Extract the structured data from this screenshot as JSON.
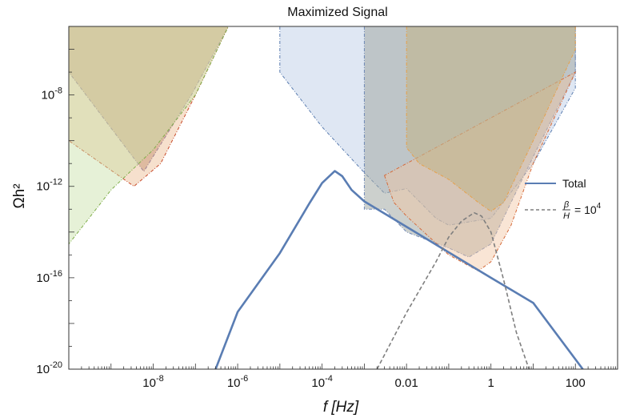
{
  "chart_data": {
    "type": "line",
    "title": "Maximized Signal",
    "xlabel": "f [Hz]",
    "ylabel": "Ωh²",
    "x_scale": "log",
    "y_scale": "log",
    "xlim": [
      1e-10,
      1000
    ],
    "ylim": [
      1e-20,
      1e-05
    ],
    "x_ticks": [
      {
        "value": 1e-08,
        "label": "10",
        "exp": "-8"
      },
      {
        "value": 1e-06,
        "label": "10",
        "exp": "-6"
      },
      {
        "value": 0.0001,
        "label": "10",
        "exp": "-4"
      },
      {
        "value": 0.01,
        "label": "0.01",
        "exp": ""
      },
      {
        "value": 1,
        "label": "1",
        "exp": ""
      },
      {
        "value": 100,
        "label": "100",
        "exp": ""
      }
    ],
    "y_ticks": [
      {
        "value": 1e-08,
        "label": "10",
        "exp": "-8"
      },
      {
        "value": 1e-12,
        "label": "10",
        "exp": "-12"
      },
      {
        "value": 1e-16,
        "label": "10",
        "exp": "-16"
      },
      {
        "value": 1e-20,
        "label": "10",
        "exp": "-20"
      }
    ],
    "legend": {
      "position": "right",
      "entries": [
        {
          "label": "Total",
          "color": "#5a7db3",
          "style": "solid"
        },
        {
          "label": "β/H = 10⁴",
          "num": "β",
          "den": "H",
          "rhs": "= 10",
          "rhs_exp": "4",
          "color": "#7f7f7f",
          "style": "dashed"
        }
      ]
    },
    "series": [
      {
        "name": "Total",
        "color": "#5a7db3",
        "style": "solid",
        "x": [
          3e-07,
          1e-06,
          1e-05,
          5e-05,
          0.0001,
          0.0002,
          0.0003,
          0.0005,
          0.001,
          0.003,
          0.01,
          0.1,
          1,
          10,
          150
        ],
        "y": [
          1e-20,
          3.2e-18,
          1.2e-15,
          1.8e-13,
          1.4e-12,
          4.7e-12,
          2.8e-12,
          7e-13,
          2.2e-13,
          6.5e-14,
          1.7e-14,
          1.3e-15,
          1e-16,
          8e-18,
          1e-20
        ]
      },
      {
        "name": "β/H = 10⁴",
        "color": "#7f7f7f",
        "style": "dashed",
        "x": [
          0.002,
          0.01,
          0.05,
          0.1,
          0.2,
          0.4,
          0.6,
          1,
          2,
          4,
          8
        ],
        "y": [
          1e-20,
          3e-18,
          5e-16,
          6e-15,
          3e-14,
          7e-14,
          5e-14,
          1e-14,
          8e-17,
          4e-19,
          1e-20
        ]
      }
    ],
    "regions": [
      {
        "color": "#8b4a2b",
        "fill_opacity": 0.32,
        "edge": "#7b6fa8",
        "x": [
          1e-10,
          1e-10,
          6e-09,
          8e-08,
          6e-07,
          1e-10
        ],
        "y": [
          1e-05,
          1e-07,
          4.5e-12,
          1e-08,
          1e-05,
          1e-05
        ]
      },
      {
        "color": "#e6a571",
        "fill_opacity": 0.35,
        "edge": "#c84a2a",
        "x": [
          1e-10,
          1e-10,
          3.5e-09,
          1.5e-08,
          1e-07,
          6e-07,
          1e-10
        ],
        "y": [
          1e-05,
          1e-10,
          1e-12,
          1e-11,
          1e-08,
          1e-05,
          1e-05
        ]
      },
      {
        "color": "#c7dfa6",
        "fill_opacity": 0.45,
        "edge": "#7fad4a",
        "x": [
          1e-10,
          1e-10,
          1e-09,
          1e-08,
          1e-07,
          6e-07,
          1e-10
        ],
        "y": [
          1e-05,
          3e-15,
          7e-13,
          4e-11,
          1e-08,
          1e-05,
          1e-05
        ]
      },
      {
        "color": "#c5d4ea",
        "fill_opacity": 0.55,
        "edge": "#5c7eb0",
        "x": [
          1e-05,
          1e-05,
          0.0001,
          0.001,
          0.003,
          0.01,
          0.05,
          0.1,
          1,
          10,
          100,
          100,
          1e-05
        ],
        "y": [
          1e-05,
          1e-07,
          4e-10,
          4e-12,
          5e-13,
          8e-13,
          4e-14,
          2e-14,
          4e-14,
          1e-11,
          2e-08,
          1e-05,
          1e-05
        ]
      },
      {
        "color": "#a2a9a4",
        "fill_opacity": 0.55,
        "edge": "#6f88b6",
        "x": [
          0.001,
          0.001,
          0.003,
          0.01,
          0.1,
          0.3,
          1,
          10,
          100,
          100,
          0.001
        ],
        "y": [
          1e-05,
          1e-13,
          1e-13,
          1e-14,
          2e-15,
          8e-16,
          3e-15,
          2e-11,
          1e-07,
          1e-05,
          1e-05
        ]
      },
      {
        "color": "#f1c5a2",
        "fill_opacity": 0.45,
        "edge": "#d56a3a",
        "x": [
          0.003,
          0.005,
          0.01,
          0.1,
          0.5,
          1,
          3,
          10,
          100,
          0.003
        ],
        "y": [
          3e-12,
          2e-13,
          5e-14,
          1e-15,
          2e-16,
          5e-16,
          2e-14,
          1e-11,
          1e-07,
          3e-12
        ]
      },
      {
        "color": "#c2b48c",
        "fill_opacity": 0.6,
        "edge": "#e7a04a",
        "x": [
          0.01,
          0.01,
          0.02,
          0.1,
          0.5,
          1,
          2,
          10,
          100,
          100,
          0.01
        ],
        "y": [
          1e-05,
          5e-11,
          1e-11,
          2e-12,
          2e-13,
          8e-14,
          2e-13,
          1e-10,
          1e-06,
          1e-05,
          1e-05
        ]
      }
    ]
  }
}
